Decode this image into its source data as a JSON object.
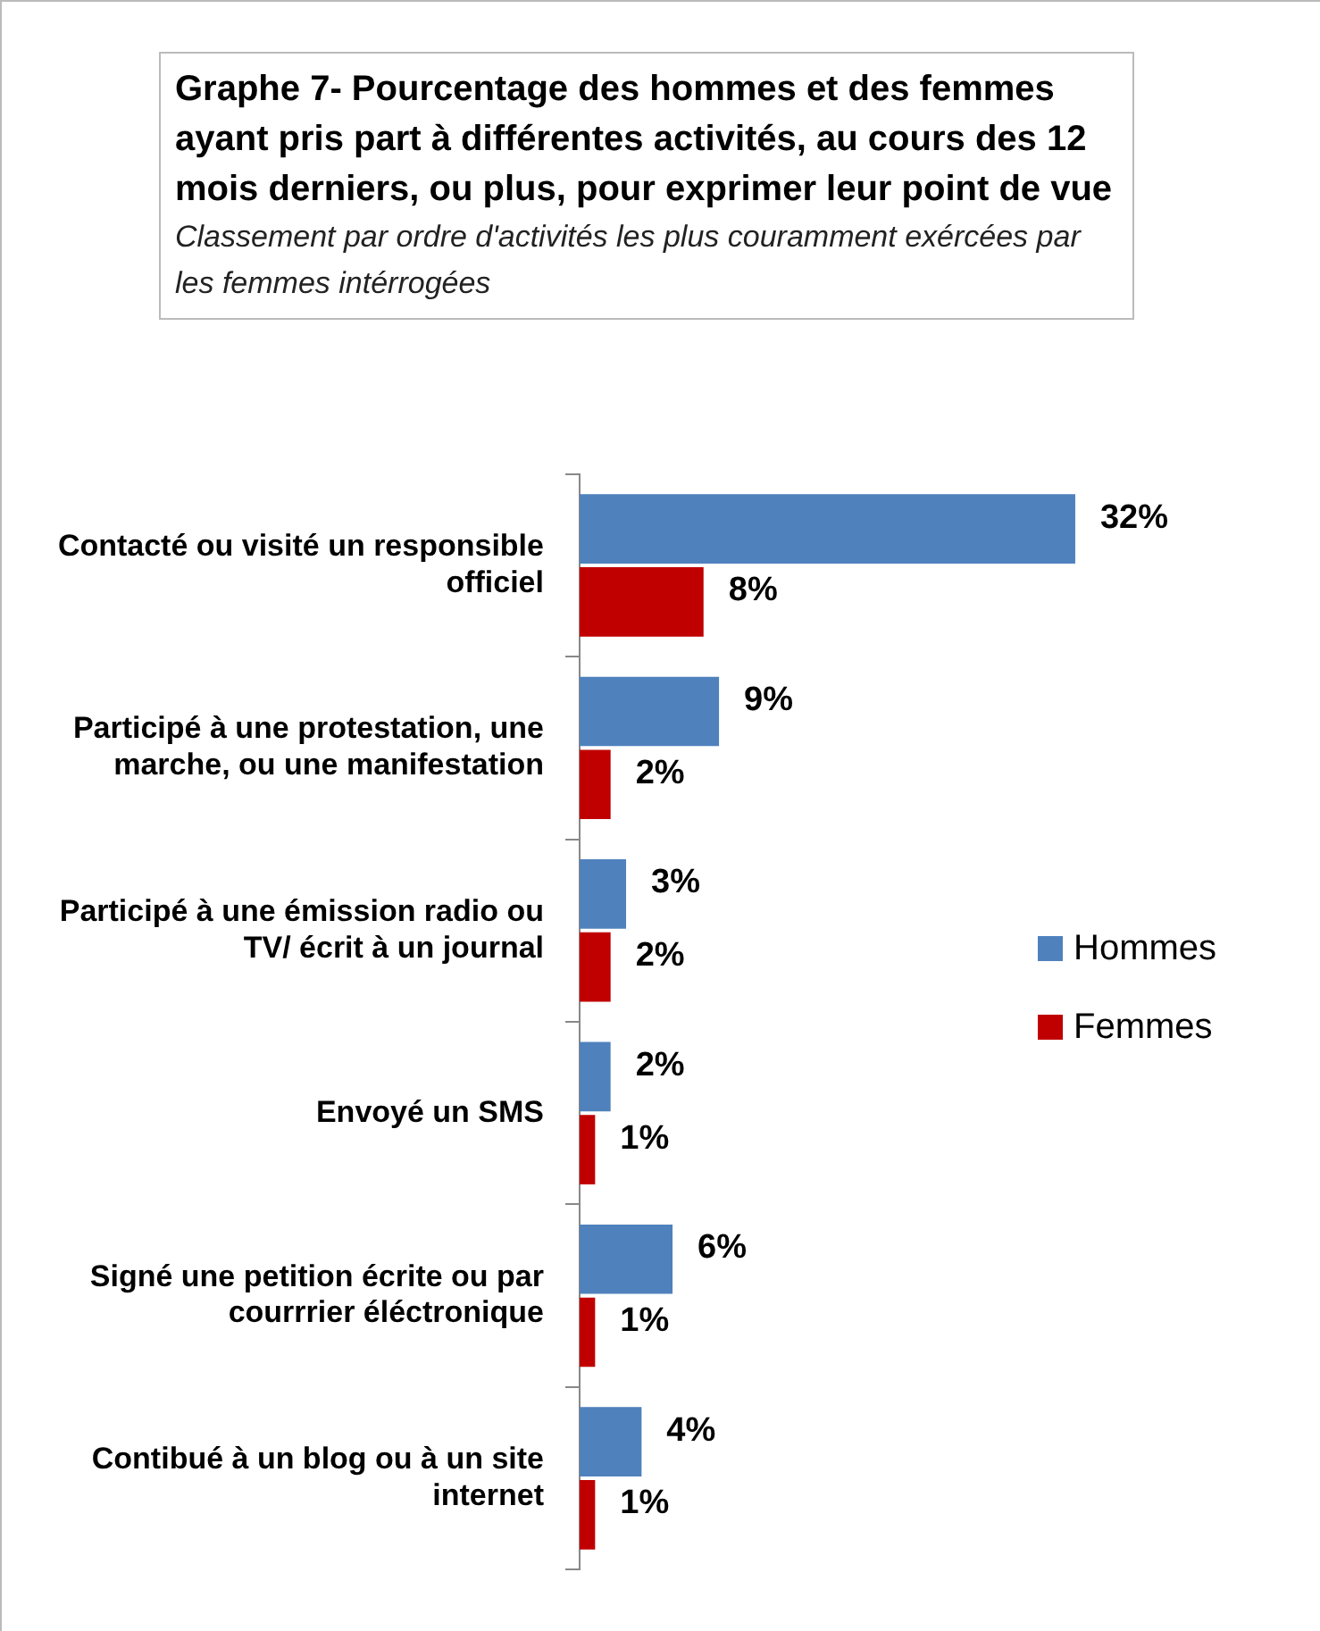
{
  "chart_data": {
    "type": "bar",
    "orientation": "horizontal",
    "title": "Graphe 7- Pourcentage des hommes et des femmes ayant pris part à différentes activités,  au cours des 12 mois derniers, ou plus,  pour exprimer leur point de vue",
    "subtitle": "Classement par ordre d'activités les plus couramment exércées par les femmes intérrogées",
    "categories": [
      "Contacté ou visité un responsible officiel",
      "Participé à une protestation, une marche, ou une manifestation",
      "Participé à une émission radio ou TV/ écrit à un journal",
      "Envoyé un SMS",
      "Signé une petition écrite ou par courrrier éléctronique",
      "Contibué à un blog ou à un site internet"
    ],
    "series": [
      {
        "name": "Hommes",
        "color": "#4f81bd",
        "values": [
          32,
          9,
          3,
          2,
          6,
          4
        ],
        "value_labels": [
          "32%",
          "9%",
          "3%",
          "2%",
          "6%",
          "4%"
        ]
      },
      {
        "name": "Femmes",
        "color": "#c00000",
        "values": [
          8,
          2,
          2,
          1,
          1,
          1
        ],
        "value_labels": [
          "8%",
          "2%",
          "2%",
          "1%",
          "1%",
          "1%"
        ]
      }
    ],
    "legend": "right"
  }
}
